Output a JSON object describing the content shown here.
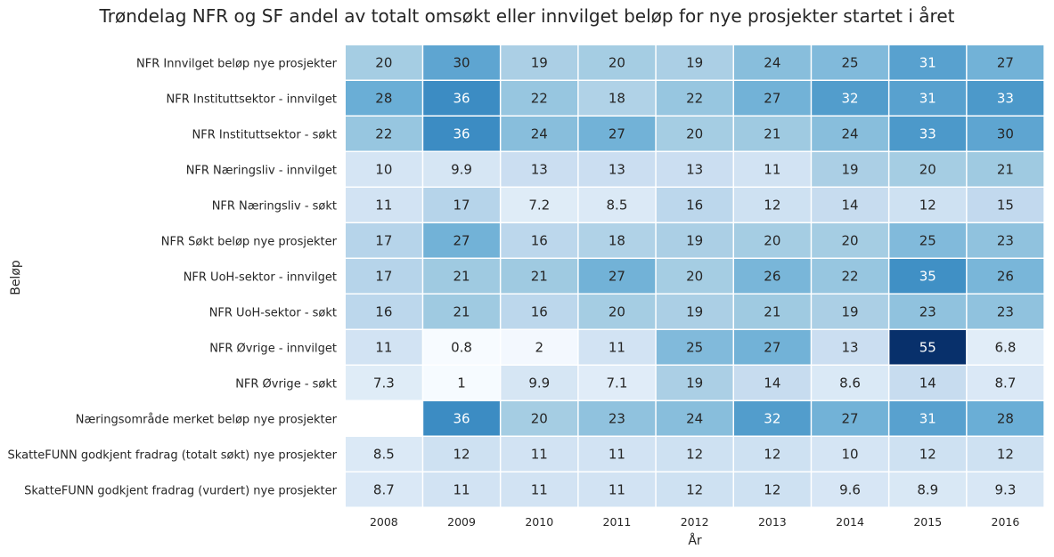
{
  "chart_data": {
    "type": "heatmap",
    "title": "Trøndelag NFR og SF andel av totalt omsøkt eller innvilget beløp for nye prosjekter startet i året",
    "xlabel": "År",
    "ylabel": "Beløp",
    "colormap": "Blues",
    "grid_color": "#ffffff",
    "x": [
      "2008",
      "2009",
      "2010",
      "2011",
      "2012",
      "2013",
      "2014",
      "2015",
      "2016"
    ],
    "y": [
      "NFR Innvilget beløp nye prosjekter",
      "NFR Instituttsektor - innvilget",
      "NFR Instituttsektor - søkt",
      "NFR Næringsliv - innvilget",
      "NFR Næringsliv - søkt",
      "NFR Søkt beløp nye prosjekter",
      "NFR UoH-sektor - innvilget",
      "NFR UoH-sektor - søkt",
      "NFR Øvrige - innvilget",
      "NFR Øvrige - søkt",
      "Næringsområde merket beløp nye prosjekter",
      "SkatteFUNN godkjent fradrag (totalt søkt) nye prosjekter",
      "SkatteFUNN godkjent fradrag (vurdert) nye prosjekter"
    ],
    "values": [
      [
        20,
        30,
        19,
        20,
        19,
        24,
        25,
        31,
        27
      ],
      [
        28,
        36,
        22,
        18,
        22,
        27,
        32,
        31,
        33
      ],
      [
        22,
        36,
        24,
        27,
        20,
        21,
        24,
        33,
        30
      ],
      [
        10,
        9.9,
        13,
        13,
        13,
        11,
        19,
        20,
        21
      ],
      [
        11,
        17,
        7.2,
        8.5,
        16,
        12,
        14,
        12,
        15
      ],
      [
        17,
        27,
        16,
        18,
        19,
        20,
        20,
        25,
        23
      ],
      [
        17,
        21,
        21,
        27,
        20,
        26,
        22,
        35,
        26
      ],
      [
        16,
        21,
        16,
        20,
        19,
        21,
        19,
        23,
        23
      ],
      [
        11,
        0.8,
        2,
        11,
        25,
        27,
        13,
        55,
        6.8
      ],
      [
        7.3,
        1,
        9.9,
        7.1,
        19,
        14,
        8.6,
        14,
        8.7
      ],
      [
        null,
        36,
        20,
        23,
        24,
        32,
        27,
        31,
        28
      ],
      [
        8.5,
        12,
        11,
        11,
        12,
        12,
        10,
        12,
        12
      ],
      [
        8.7,
        11,
        11,
        11,
        12,
        12,
        9.6,
        8.9,
        9.3
      ]
    ],
    "vmin": 0.8,
    "vmax": 55,
    "colorbar": false
  }
}
